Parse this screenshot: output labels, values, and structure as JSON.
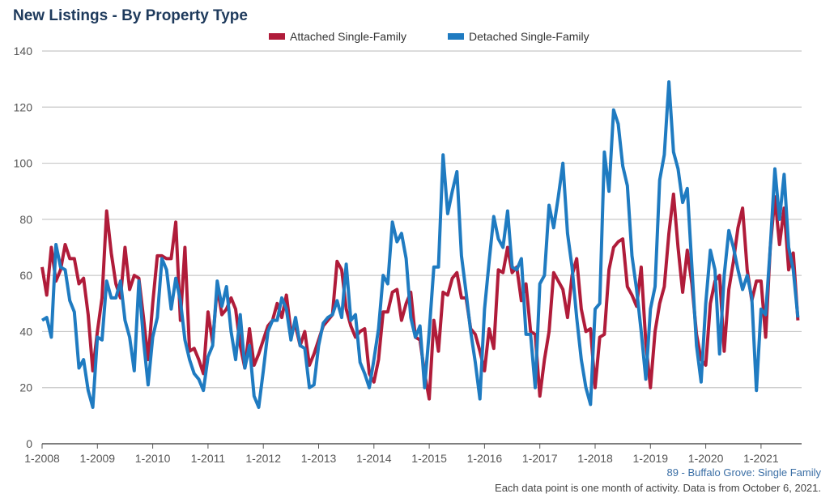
{
  "chart_data": {
    "type": "line",
    "title": "New Listings - By Property Type",
    "x_start": "2008-01",
    "x_tick_labels": [
      "1-2008",
      "1-2009",
      "1-2010",
      "1-2011",
      "1-2012",
      "1-2013",
      "1-2014",
      "1-2015",
      "1-2016",
      "1-2017",
      "1-2018",
      "1-2019",
      "1-2020",
      "1-2021"
    ],
    "ylim": [
      0,
      140
    ],
    "y_ticks": [
      0,
      20,
      40,
      60,
      80,
      100,
      120,
      140
    ],
    "grid": true,
    "legend": "top-center",
    "series": [
      {
        "name": "Attached Single-Family",
        "color": "#b01c3a",
        "values": [
          63,
          53,
          70,
          58,
          62,
          71,
          66,
          66,
          57,
          59,
          46,
          26,
          40,
          52,
          83,
          68,
          57,
          52,
          70,
          55,
          60,
          59,
          45,
          30,
          50,
          67,
          67,
          66,
          66,
          79,
          44,
          70,
          33,
          34,
          30,
          25,
          47,
          36,
          56,
          46,
          48,
          52,
          48,
          35,
          27,
          41,
          28,
          32,
          37,
          42,
          44,
          50,
          45,
          53,
          40,
          42,
          35,
          40,
          28,
          32,
          37,
          42,
          44,
          46,
          65,
          62,
          48,
          42,
          38,
          40,
          41,
          25,
          22,
          30,
          47,
          47,
          54,
          55,
          44,
          50,
          54,
          38,
          37,
          25,
          16,
          44,
          33,
          54,
          53,
          59,
          61,
          52,
          52,
          41,
          39,
          33,
          26,
          41,
          34,
          62,
          61,
          70,
          61,
          63,
          51,
          57,
          40,
          39,
          17,
          30,
          40,
          61,
          58,
          55,
          45,
          60,
          66,
          48,
          40,
          41,
          20,
          38,
          39,
          62,
          70,
          72,
          73,
          56,
          53,
          49,
          63,
          36,
          20,
          40,
          50,
          56,
          75,
          89,
          70,
          54,
          69,
          57,
          39,
          30,
          28,
          50,
          58,
          60,
          33,
          55,
          65,
          77,
          84,
          62,
          51,
          58,
          58,
          38,
          70,
          88,
          71,
          84,
          62,
          68,
          44
        ]
      },
      {
        "name": "Detached Single-Family",
        "color": "#1f7bc1",
        "values": [
          44,
          45,
          38,
          71,
          63,
          62,
          51,
          47,
          27,
          30,
          19,
          13,
          38,
          37,
          58,
          52,
          52,
          58,
          44,
          38,
          26,
          58,
          37,
          21,
          38,
          45,
          66,
          62,
          48,
          59,
          51,
          37,
          30,
          25,
          23,
          19,
          31,
          35,
          58,
          49,
          56,
          40,
          30,
          46,
          27,
          35,
          17,
          13,
          26,
          40,
          44,
          44,
          52,
          48,
          37,
          45,
          35,
          34,
          20,
          21,
          35,
          43,
          45,
          46,
          51,
          45,
          64,
          44,
          46,
          29,
          25,
          20,
          30,
          41,
          60,
          57,
          79,
          72,
          75,
          66,
          45,
          38,
          42,
          20,
          40,
          63,
          63,
          103,
          82,
          90,
          97,
          67,
          54,
          40,
          29,
          16,
          48,
          65,
          81,
          73,
          70,
          83,
          63,
          62,
          66,
          39,
          39,
          20,
          57,
          60,
          85,
          77,
          88,
          100,
          75,
          63,
          45,
          30,
          20,
          14,
          48,
          50,
          104,
          90,
          119,
          114,
          99,
          92,
          67,
          55,
          40,
          23,
          48,
          56,
          94,
          103,
          129,
          104,
          98,
          86,
          91,
          63,
          35,
          22,
          50,
          69,
          62,
          32,
          60,
          76,
          70,
          62,
          55,
          60,
          52,
          19,
          48,
          46,
          70,
          98,
          80,
          96,
          70,
          62,
          45
        ]
      }
    ]
  },
  "footer": {
    "area": "89 - Buffalo Grove: Single Family",
    "note": "Each data point is one month of activity. Data is from October 6, 2021."
  }
}
